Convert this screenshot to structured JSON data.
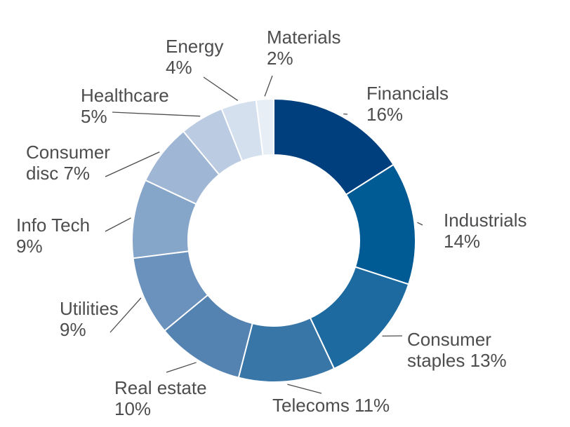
{
  "chart_data": {
    "type": "pie",
    "title": "",
    "unit": "%",
    "slices": [
      {
        "name": "Financials",
        "value": 16,
        "label": [
          "Financials",
          "16%"
        ],
        "color": "#003f7d"
      },
      {
        "name": "Industrials",
        "value": 14,
        "label": [
          "Industrials",
          "14%"
        ],
        "color": "#005a94"
      },
      {
        "name": "Consumer staples",
        "value": 13,
        "label": [
          "Consumer",
          "staples 13%"
        ],
        "color": "#1c6aa0"
      },
      {
        "name": "Telecoms",
        "value": 11,
        "label": [
          "Telecoms 11%"
        ],
        "color": "#3876a8"
      },
      {
        "name": "Real estate",
        "value": 10,
        "label": [
          "Real estate",
          "10%"
        ],
        "color": "#5483b2"
      },
      {
        "name": "Utilities",
        "value": 9,
        "label": [
          "Utilities",
          "9%"
        ],
        "color": "#6b92bd"
      },
      {
        "name": "Info Tech",
        "value": 9,
        "label": [
          "Info Tech",
          "9%"
        ],
        "color": "#85a5c9"
      },
      {
        "name": "Consumer disc",
        "value": 7,
        "label": [
          "Consumer",
          "disc 7%"
        ],
        "color": "#9fb7d5"
      },
      {
        "name": "Healthcare",
        "value": 5,
        "label": [
          "Healthcare",
          "5%"
        ],
        "color": "#bacbe2"
      },
      {
        "name": "Energy",
        "value": 4,
        "label": [
          "Energy",
          "4%"
        ],
        "color": "#d5e0ee"
      },
      {
        "name": "Materials",
        "value": 2,
        "label": [
          "Materials",
          "2%"
        ],
        "color": "#e8eef6"
      }
    ]
  }
}
